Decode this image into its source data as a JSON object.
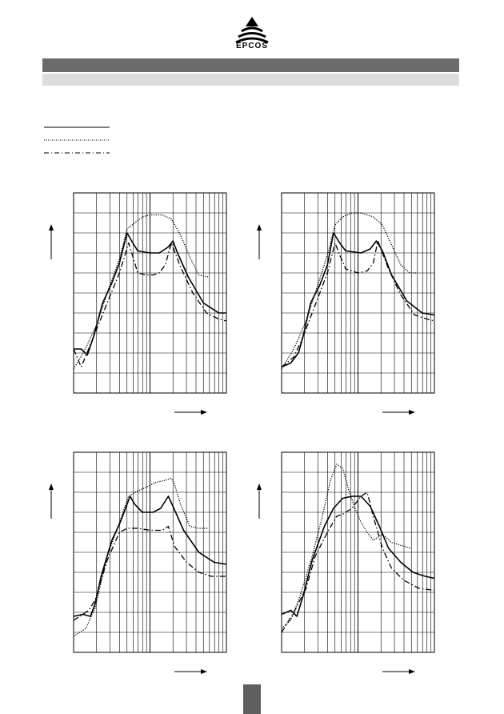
{
  "header": {
    "logo_text": "EPCOS",
    "colors": {
      "bar_dark": "#6b6b6b",
      "bar_light": "#dcdcdc"
    }
  },
  "legend": {
    "items": [
      {
        "style": "solid"
      },
      {
        "style": "dotted"
      },
      {
        "style": "dash-dot"
      }
    ]
  },
  "chart_data": [
    {
      "type": "line",
      "x_scale": "log",
      "grid": true,
      "series": [
        {
          "style": "solid",
          "points": [
            [
              0,
              0.78
            ],
            [
              0.05,
              0.78
            ],
            [
              0.09,
              0.81
            ],
            [
              0.13,
              0.72
            ],
            [
              0.19,
              0.55
            ],
            [
              0.25,
              0.45
            ],
            [
              0.3,
              0.35
            ],
            [
              0.35,
              0.2
            ],
            [
              0.38,
              0.24
            ],
            [
              0.42,
              0.29
            ],
            [
              0.5,
              0.3
            ],
            [
              0.56,
              0.3
            ],
            [
              0.62,
              0.27
            ],
            [
              0.65,
              0.24
            ],
            [
              0.68,
              0.3
            ],
            [
              0.75,
              0.42
            ],
            [
              0.85,
              0.55
            ],
            [
              0.95,
              0.6
            ],
            [
              1.0,
              0.6
            ]
          ]
        },
        {
          "style": "dotted",
          "points": [
            [
              0.0,
              0.88
            ],
            [
              0.07,
              0.79
            ],
            [
              0.15,
              0.66
            ],
            [
              0.22,
              0.5
            ],
            [
              0.3,
              0.33
            ],
            [
              0.35,
              0.18
            ],
            [
              0.4,
              0.15
            ],
            [
              0.45,
              0.12
            ],
            [
              0.5,
              0.11
            ],
            [
              0.58,
              0.11
            ],
            [
              0.64,
              0.13
            ],
            [
              0.7,
              0.21
            ],
            [
              0.76,
              0.32
            ],
            [
              0.82,
              0.41
            ],
            [
              0.88,
              0.42
            ]
          ]
        },
        {
          "style": "dash-dot",
          "points": [
            [
              0.0,
              0.78
            ],
            [
              0.05,
              0.87
            ],
            [
              0.12,
              0.74
            ],
            [
              0.22,
              0.55
            ],
            [
              0.3,
              0.4
            ],
            [
              0.36,
              0.25
            ],
            [
              0.38,
              0.3
            ],
            [
              0.42,
              0.4
            ],
            [
              0.48,
              0.41
            ],
            [
              0.52,
              0.41
            ],
            [
              0.56,
              0.4
            ],
            [
              0.6,
              0.36
            ],
            [
              0.64,
              0.25
            ],
            [
              0.7,
              0.37
            ],
            [
              0.78,
              0.5
            ],
            [
              0.87,
              0.6
            ],
            [
              0.95,
              0.63
            ],
            [
              1.0,
              0.64
            ]
          ]
        }
      ]
    },
    {
      "type": "line",
      "x_scale": "log",
      "grid": true,
      "series": [
        {
          "style": "solid",
          "points": [
            [
              0,
              0.87
            ],
            [
              0.06,
              0.85
            ],
            [
              0.11,
              0.8
            ],
            [
              0.14,
              0.72
            ],
            [
              0.19,
              0.55
            ],
            [
              0.25,
              0.46
            ],
            [
              0.3,
              0.36
            ],
            [
              0.34,
              0.2
            ],
            [
              0.38,
              0.25
            ],
            [
              0.42,
              0.29
            ],
            [
              0.52,
              0.3
            ],
            [
              0.58,
              0.28
            ],
            [
              0.62,
              0.24
            ],
            [
              0.66,
              0.29
            ],
            [
              0.72,
              0.41
            ],
            [
              0.82,
              0.54
            ],
            [
              0.92,
              0.6
            ],
            [
              1.0,
              0.61
            ]
          ]
        },
        {
          "style": "dotted",
          "points": [
            [
              0.0,
              0.88
            ],
            [
              0.08,
              0.78
            ],
            [
              0.16,
              0.64
            ],
            [
              0.22,
              0.5
            ],
            [
              0.3,
              0.31
            ],
            [
              0.35,
              0.16
            ],
            [
              0.4,
              0.12
            ],
            [
              0.46,
              0.1
            ],
            [
              0.52,
              0.1
            ],
            [
              0.6,
              0.12
            ],
            [
              0.66,
              0.16
            ],
            [
              0.72,
              0.26
            ],
            [
              0.78,
              0.36
            ],
            [
              0.84,
              0.4
            ],
            [
              0.88,
              0.4
            ]
          ]
        },
        {
          "style": "dash-dot",
          "points": [
            [
              0.0,
              0.87
            ],
            [
              0.08,
              0.82
            ],
            [
              0.14,
              0.72
            ],
            [
              0.22,
              0.56
            ],
            [
              0.3,
              0.4
            ],
            [
              0.35,
              0.25
            ],
            [
              0.38,
              0.31
            ],
            [
              0.42,
              0.38
            ],
            [
              0.5,
              0.4
            ],
            [
              0.56,
              0.39
            ],
            [
              0.6,
              0.35
            ],
            [
              0.63,
              0.24
            ],
            [
              0.7,
              0.38
            ],
            [
              0.78,
              0.51
            ],
            [
              0.87,
              0.61
            ],
            [
              0.95,
              0.63
            ],
            [
              1.0,
              0.64
            ]
          ]
        }
      ]
    },
    {
      "type": "line",
      "x_scale": "log",
      "grid": true,
      "series": [
        {
          "style": "solid",
          "points": [
            [
              0,
              0.82
            ],
            [
              0.06,
              0.81
            ],
            [
              0.11,
              0.82
            ],
            [
              0.14,
              0.76
            ],
            [
              0.18,
              0.62
            ],
            [
              0.25,
              0.44
            ],
            [
              0.3,
              0.36
            ],
            [
              0.37,
              0.22
            ],
            [
              0.4,
              0.26
            ],
            [
              0.45,
              0.3
            ],
            [
              0.52,
              0.3
            ],
            [
              0.57,
              0.28
            ],
            [
              0.62,
              0.22
            ],
            [
              0.65,
              0.27
            ],
            [
              0.72,
              0.39
            ],
            [
              0.82,
              0.5
            ],
            [
              0.92,
              0.55
            ],
            [
              1.0,
              0.56
            ]
          ]
        },
        {
          "style": "dotted",
          "points": [
            [
              0.0,
              0.92
            ],
            [
              0.08,
              0.88
            ],
            [
              0.14,
              0.78
            ],
            [
              0.22,
              0.52
            ],
            [
              0.3,
              0.35
            ],
            [
              0.36,
              0.22
            ],
            [
              0.4,
              0.2
            ],
            [
              0.46,
              0.18
            ],
            [
              0.54,
              0.15
            ],
            [
              0.6,
              0.14
            ],
            [
              0.64,
              0.13
            ],
            [
              0.66,
              0.16
            ],
            [
              0.7,
              0.26
            ],
            [
              0.76,
              0.37
            ],
            [
              0.82,
              0.38
            ],
            [
              0.88,
              0.38
            ]
          ]
        },
        {
          "style": "dash-dot",
          "points": [
            [
              0.0,
              0.84
            ],
            [
              0.1,
              0.79
            ],
            [
              0.14,
              0.74
            ],
            [
              0.22,
              0.54
            ],
            [
              0.3,
              0.4
            ],
            [
              0.35,
              0.38
            ],
            [
              0.42,
              0.38
            ],
            [
              0.5,
              0.39
            ],
            [
              0.58,
              0.39
            ],
            [
              0.62,
              0.37
            ],
            [
              0.66,
              0.47
            ],
            [
              0.74,
              0.55
            ],
            [
              0.82,
              0.6
            ],
            [
              0.9,
              0.62
            ],
            [
              1.0,
              0.62
            ]
          ]
        }
      ]
    },
    {
      "type": "line",
      "x_scale": "log",
      "grid": true,
      "series": [
        {
          "style": "solid",
          "points": [
            [
              0,
              0.81
            ],
            [
              0.06,
              0.79
            ],
            [
              0.1,
              0.82
            ],
            [
              0.14,
              0.72
            ],
            [
              0.2,
              0.54
            ],
            [
              0.28,
              0.37
            ],
            [
              0.34,
              0.28
            ],
            [
              0.4,
              0.23
            ],
            [
              0.46,
              0.22
            ],
            [
              0.52,
              0.22
            ],
            [
              0.58,
              0.27
            ],
            [
              0.64,
              0.37
            ],
            [
              0.7,
              0.48
            ],
            [
              0.78,
              0.55
            ],
            [
              0.86,
              0.6
            ],
            [
              0.94,
              0.62
            ],
            [
              1.0,
              0.63
            ]
          ]
        },
        {
          "style": "dotted",
          "points": [
            [
              0.0,
              0.88
            ],
            [
              0.06,
              0.84
            ],
            [
              0.12,
              0.72
            ],
            [
              0.2,
              0.52
            ],
            [
              0.26,
              0.34
            ],
            [
              0.32,
              0.14
            ],
            [
              0.36,
              0.06
            ],
            [
              0.4,
              0.08
            ],
            [
              0.44,
              0.19
            ],
            [
              0.48,
              0.28
            ],
            [
              0.52,
              0.35
            ],
            [
              0.56,
              0.4
            ],
            [
              0.6,
              0.44
            ],
            [
              0.66,
              0.41
            ],
            [
              0.72,
              0.45
            ],
            [
              0.8,
              0.47
            ],
            [
              0.85,
              0.48
            ]
          ]
        },
        {
          "style": "dash-dot",
          "points": [
            [
              0.0,
              0.9
            ],
            [
              0.08,
              0.8
            ],
            [
              0.16,
              0.68
            ],
            [
              0.22,
              0.52
            ],
            [
              0.3,
              0.4
            ],
            [
              0.36,
              0.32
            ],
            [
              0.4,
              0.31
            ],
            [
              0.46,
              0.28
            ],
            [
              0.52,
              0.22
            ],
            [
              0.56,
              0.2
            ],
            [
              0.6,
              0.32
            ],
            [
              0.66,
              0.48
            ],
            [
              0.72,
              0.58
            ],
            [
              0.8,
              0.64
            ],
            [
              0.9,
              0.68
            ],
            [
              1.0,
              0.69
            ]
          ]
        }
      ]
    }
  ]
}
